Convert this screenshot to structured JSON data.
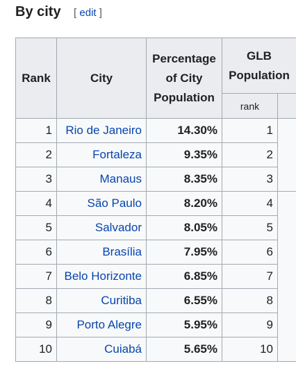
{
  "heading": {
    "title": "By city",
    "edit_open": "[",
    "edit_label": "edit",
    "edit_close": "]"
  },
  "table": {
    "headers": {
      "rank": "Rank",
      "city": "City",
      "percentage": "Percentage of City Population",
      "glb": "GLB Population",
      "glb_rank": "rank"
    },
    "rows": [
      [
        1,
        "Rio de Janeiro",
        "14.30%",
        1
      ],
      [
        2,
        "Fortaleza",
        "9.35%",
        2
      ],
      [
        3,
        "Manaus",
        "8.35%",
        3
      ],
      [
        4,
        "São Paulo",
        "8.20%",
        4
      ],
      [
        5,
        "Salvador",
        "8.05%",
        5
      ],
      [
        6,
        "Brasília",
        "7.95%",
        6
      ],
      [
        7,
        "Belo Horizonte",
        "6.85%",
        7
      ],
      [
        8,
        "Curitiba",
        "6.55%",
        8
      ],
      [
        9,
        "Porto Alegre",
        "5.95%",
        9
      ],
      [
        10,
        "Cuiabá",
        "5.65%",
        10
      ]
    ]
  }
}
